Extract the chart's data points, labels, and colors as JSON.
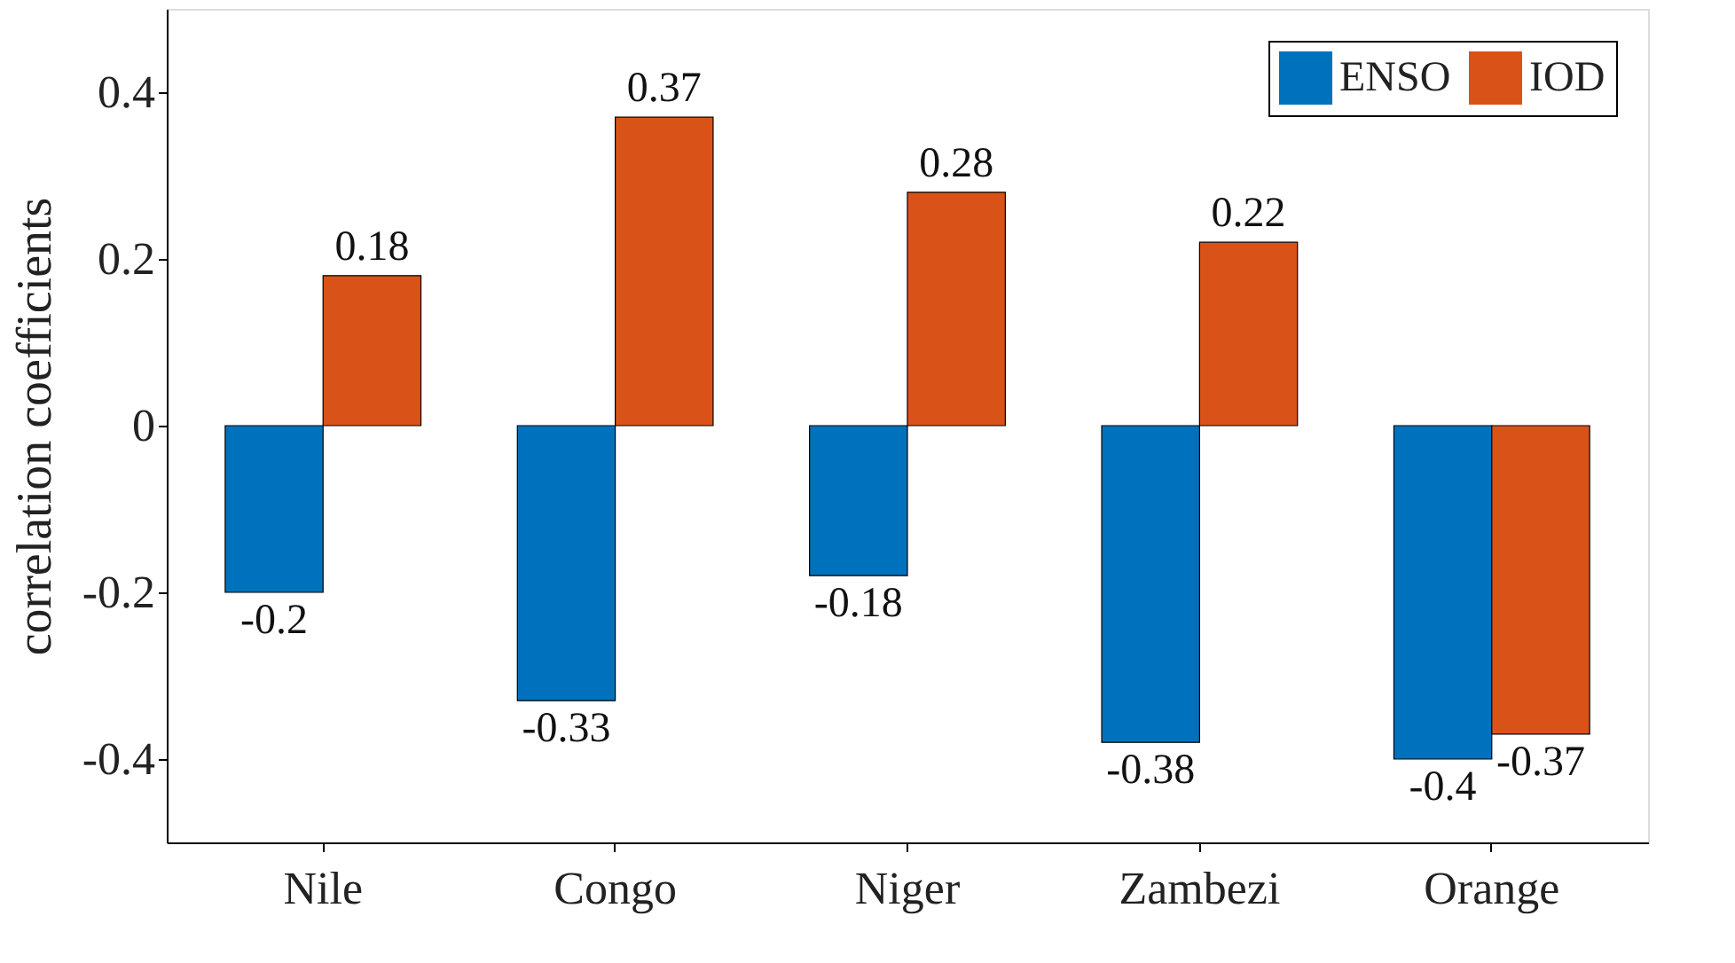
{
  "chart_data": {
    "type": "bar",
    "ylabel": "correlation coefficients",
    "categories": [
      "Nile",
      "Congo",
      "Niger",
      "Zambezi",
      "Orange"
    ],
    "series": [
      {
        "name": "ENSO",
        "color": "#0072bd",
        "values": [
          -0.2,
          -0.33,
          -0.18,
          -0.38,
          -0.4
        ]
      },
      {
        "name": "IOD",
        "color": "#d95319",
        "values": [
          0.18,
          0.37,
          0.28,
          0.22,
          -0.37
        ]
      }
    ],
    "ylim": [
      -0.5,
      0.5
    ],
    "yticks": [
      -0.4,
      -0.2,
      0,
      0.2,
      0.4
    ],
    "data_labels": true,
    "grid": false,
    "legend": "top right"
  }
}
